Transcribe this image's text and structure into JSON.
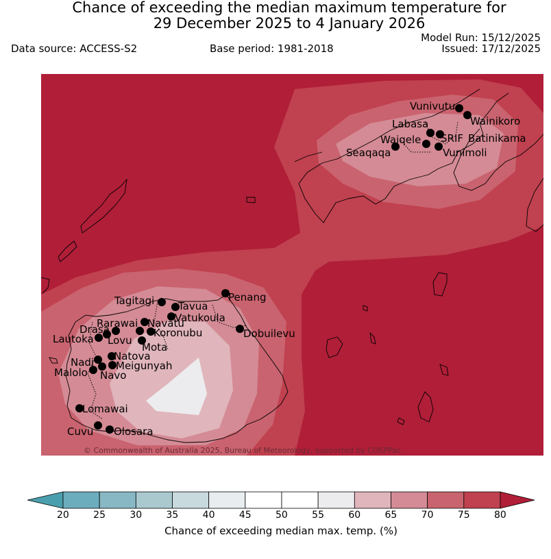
{
  "header": {
    "title_line1": "Chance of exceeding the median maximum temperature for",
    "title_line2": "29 December 2025 to 4 January 2026",
    "data_source": "Data source: ACCESS-S2",
    "base_period": "Base period: 1981-2018",
    "model_run": "Model Run: 15/12/2025",
    "issued": "Issued: 17/12/2025"
  },
  "map": {
    "copyright": "© Commonwealth of Australia 2025, Bureau of Meteorology, supported by COSPPac",
    "stations": [
      {
        "name": "Vunivutu"
      },
      {
        "name": "Wainikoro"
      },
      {
        "name": "Labasa"
      },
      {
        "name": "SRIF"
      },
      {
        "name": "Batinikama"
      },
      {
        "name": "Waiqele"
      },
      {
        "name": "Seaqaqa"
      },
      {
        "name": "Vunimoli"
      },
      {
        "name": "Penang"
      },
      {
        "name": "Tagitagi"
      },
      {
        "name": "Tavua"
      },
      {
        "name": "Vatukoula"
      },
      {
        "name": "Rarawai"
      },
      {
        "name": "Navatu"
      },
      {
        "name": "Drasa"
      },
      {
        "name": "Koronubu"
      },
      {
        "name": "Lautoka"
      },
      {
        "name": "Lovu"
      },
      {
        "name": "Dobuilevu"
      },
      {
        "name": "Mota"
      },
      {
        "name": "Natova"
      },
      {
        "name": "Nadi"
      },
      {
        "name": "Meigunyah"
      },
      {
        "name": "Malolo"
      },
      {
        "name": "Navo"
      },
      {
        "name": "Lomawai"
      },
      {
        "name": "Cuvu"
      },
      {
        "name": "Olosara"
      }
    ]
  },
  "colorbar": {
    "title": "Chance of exceeding median max. temp. (%)",
    "ticks": [
      "20",
      "25",
      "30",
      "35",
      "40",
      "45",
      "50",
      "55",
      "60",
      "65",
      "70",
      "75",
      "80"
    ],
    "colors": [
      "#6cadbd",
      "#88b8c4",
      "#a9c9cf",
      "#c8dade",
      "#e8eef0",
      "#ffffff",
      "#ffffff",
      "#ececee",
      "#e0b5bc",
      "#d48b95",
      "#c9636f",
      "#c0414f"
    ],
    "under_color": "#4a9fae",
    "over_color": "#b01e38"
  }
}
